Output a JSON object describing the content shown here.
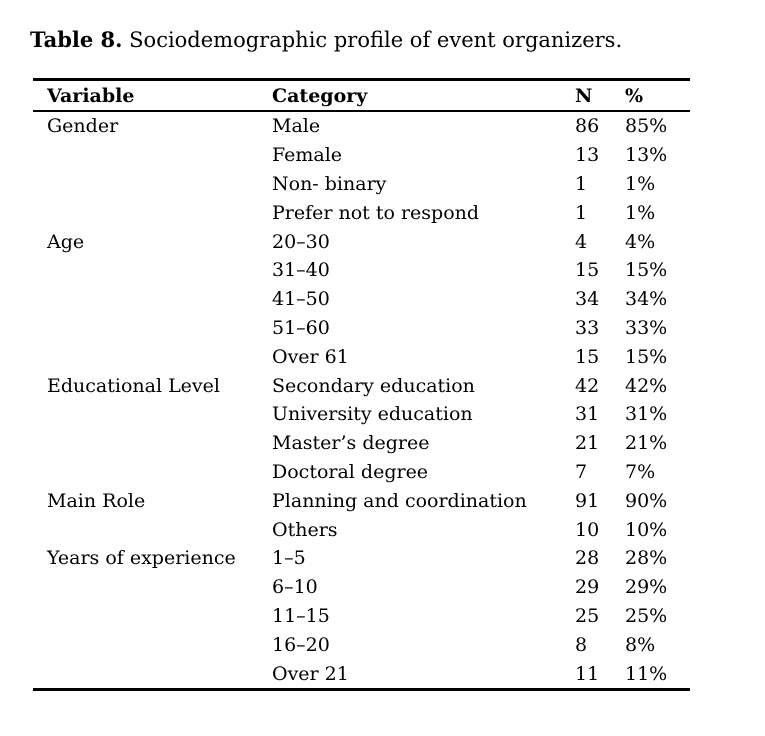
{
  "page": {
    "background_color": "#ffffff",
    "text_color": "#000000"
  },
  "caption": {
    "label": "Table 8.",
    "text": " Sociodemographic profile of event organizers."
  },
  "table": {
    "columns": [
      {
        "key": "variable",
        "label": "Variable"
      },
      {
        "key": "category",
        "label": "Category"
      },
      {
        "key": "n",
        "label": "N"
      },
      {
        "key": "pct",
        "label": "%"
      }
    ],
    "rows": [
      {
        "variable": "Gender",
        "category": "Male",
        "n": "86",
        "pct": "85%"
      },
      {
        "variable": "",
        "category": "Female",
        "n": "13",
        "pct": "13%"
      },
      {
        "variable": "",
        "category": "Non- binary",
        "n": "1",
        "pct": "1%"
      },
      {
        "variable": "",
        "category": "Prefer not to respond",
        "n": "1",
        "pct": "1%"
      },
      {
        "variable": "Age",
        "category": "20–30",
        "n": "4",
        "pct": "4%"
      },
      {
        "variable": "",
        "category": "31–40",
        "n": "15",
        "pct": "15%"
      },
      {
        "variable": "",
        "category": "41–50",
        "n": "34",
        "pct": "34%"
      },
      {
        "variable": "",
        "category": "51–60",
        "n": "33",
        "pct": "33%"
      },
      {
        "variable": "",
        "category": "Over 61",
        "n": "15",
        "pct": "15%"
      },
      {
        "variable": "Educational Level",
        "category": "Secondary education",
        "n": "42",
        "pct": "42%"
      },
      {
        "variable": "",
        "category": "University education",
        "n": "31",
        "pct": "31%"
      },
      {
        "variable": "",
        "category": "Master’s degree",
        "n": "21",
        "pct": "21%"
      },
      {
        "variable": "",
        "category": "Doctoral degree",
        "n": "7",
        "pct": "7%"
      },
      {
        "variable": "Main Role",
        "category": "Planning and coordination",
        "n": "91",
        "pct": "90%"
      },
      {
        "variable": "",
        "category": "Others",
        "n": "10",
        "pct": "10%"
      },
      {
        "variable": "Years of experience",
        "category": "1–5",
        "n": "28",
        "pct": "28%"
      },
      {
        "variable": "",
        "category": "6–10",
        "n": "29",
        "pct": "29%"
      },
      {
        "variable": "",
        "category": "11–15",
        "n": "25",
        "pct": "25%"
      },
      {
        "variable": "",
        "category": "16–20",
        "n": "8",
        "pct": "8%"
      },
      {
        "variable": "",
        "category": "Over 21",
        "n": "11",
        "pct": "11%"
      }
    ]
  }
}
